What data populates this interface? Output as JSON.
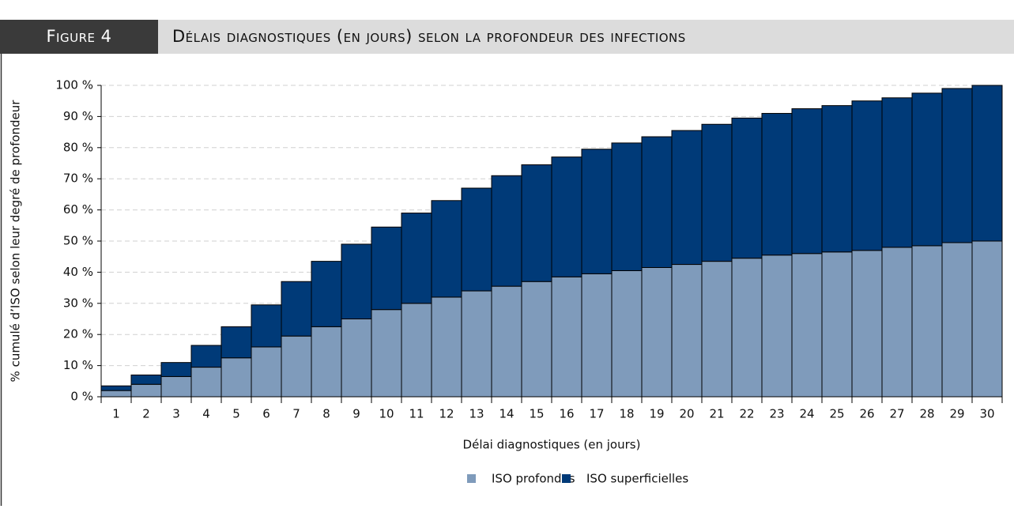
{
  "chart_data": {
    "type": "stacked-bar",
    "figure_label": "Figure 4",
    "title": "Délais diagnostiques (en jours) selon la profondeur des infections",
    "x_label": "Délai diagnostiques (en jours)",
    "y_label": "% cumulé d’ISO selon leur degré de profondeur",
    "categories": [
      "1",
      "2",
      "3",
      "4",
      "5",
      "6",
      "7",
      "8",
      "9",
      "10",
      "11",
      "12",
      "13",
      "14",
      "15",
      "16",
      "17",
      "18",
      "19",
      "20",
      "21",
      "22",
      "23",
      "24",
      "25",
      "26",
      "27",
      "28",
      "29",
      "30"
    ],
    "series": [
      {
        "name": "ISO profondes",
        "color": "#7f9bbb",
        "values": [
          2,
          4,
          6.5,
          9.5,
          12.5,
          16,
          19.5,
          22.5,
          25,
          28,
          30,
          32,
          34,
          35.5,
          37,
          38.5,
          39.5,
          40.5,
          41.5,
          42.5,
          43.5,
          44.5,
          45.5,
          46,
          46.5,
          47,
          48,
          48.5,
          49.5,
          50
        ]
      },
      {
        "name": "ISO superficielles",
        "color": "#003a78",
        "values": [
          1.5,
          3,
          4.5,
          7,
          10,
          13.5,
          17.5,
          21,
          24,
          26.5,
          29,
          31,
          33,
          35.5,
          37.5,
          38.5,
          40,
          41,
          42,
          43,
          44,
          45,
          45.5,
          46.5,
          47,
          48,
          48,
          49,
          49.5,
          50
        ]
      }
    ],
    "ylim": [
      0,
      100
    ],
    "yticks": [
      {
        "value": 0,
        "label": "0 %"
      },
      {
        "value": 10,
        "label": "10 %"
      },
      {
        "value": 20,
        "label": "20 %"
      },
      {
        "value": 30,
        "label": "30 %"
      },
      {
        "value": 40,
        "label": "40 %"
      },
      {
        "value": 50,
        "label": "50 %"
      },
      {
        "value": 60,
        "label": "60 %"
      },
      {
        "value": 70,
        "label": "70 %"
      },
      {
        "value": 80,
        "label": "80 %"
      },
      {
        "value": 90,
        "label": "90 %"
      },
      {
        "value": 100,
        "label": "100 %"
      }
    ],
    "grid": true,
    "legend": "bottom"
  }
}
